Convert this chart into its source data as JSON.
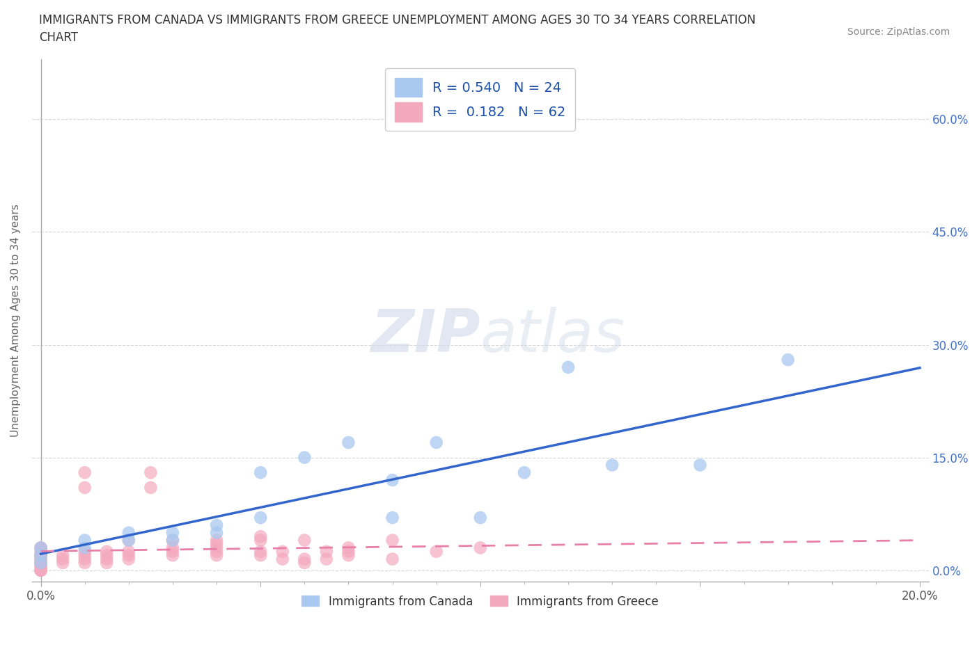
{
  "title_line1": "IMMIGRANTS FROM CANADA VS IMMIGRANTS FROM GREECE UNEMPLOYMENT AMONG AGES 30 TO 34 YEARS CORRELATION",
  "title_line2": "CHART",
  "source": "Source: ZipAtlas.com",
  "ylabel": "Unemployment Among Ages 30 to 34 years",
  "xlim": [
    -0.002,
    0.202
  ],
  "ylim": [
    -0.015,
    0.68
  ],
  "yticks": [
    0.0,
    0.15,
    0.3,
    0.45,
    0.6
  ],
  "ytick_labels": [
    "0.0%",
    "15.0%",
    "30.0%",
    "45.0%",
    "60.0%"
  ],
  "xticks": [
    0.0,
    0.05,
    0.1,
    0.15,
    0.2
  ],
  "xtick_labels": [
    "0.0%",
    "",
    "",
    "",
    "20.0%"
  ],
  "xtick_minor": [
    0.01,
    0.02,
    0.03,
    0.04,
    0.06,
    0.07,
    0.08,
    0.09,
    0.11,
    0.12,
    0.13,
    0.14,
    0.16,
    0.17,
    0.18,
    0.19
  ],
  "canada_R": 0.54,
  "canada_N": 24,
  "greece_R": 0.182,
  "greece_N": 62,
  "canada_color": "#a8c8f0",
  "greece_color": "#f4a8be",
  "canada_line_color": "#3366cc",
  "greece_line_color": "#e87fa8",
  "canada_label": "Immigrants from Canada",
  "greece_label": "Immigrants from Greece",
  "watermark": "ZIPatlas",
  "canada_x": [
    0.0,
    0.0,
    0.0,
    0.01,
    0.01,
    0.02,
    0.02,
    0.03,
    0.03,
    0.04,
    0.04,
    0.05,
    0.05,
    0.06,
    0.07,
    0.08,
    0.08,
    0.09,
    0.1,
    0.11,
    0.12,
    0.13,
    0.15,
    0.17
  ],
  "canada_y": [
    0.01,
    0.02,
    0.03,
    0.03,
    0.04,
    0.04,
    0.05,
    0.04,
    0.05,
    0.05,
    0.06,
    0.13,
    0.07,
    0.15,
    0.17,
    0.07,
    0.12,
    0.17,
    0.07,
    0.13,
    0.27,
    0.14,
    0.14,
    0.28
  ],
  "greece_x": [
    0.0,
    0.0,
    0.0,
    0.0,
    0.0,
    0.0,
    0.0,
    0.0,
    0.0,
    0.0,
    0.0,
    0.0,
    0.0,
    0.0,
    0.0,
    0.0,
    0.005,
    0.005,
    0.005,
    0.01,
    0.01,
    0.01,
    0.01,
    0.01,
    0.01,
    0.015,
    0.015,
    0.015,
    0.015,
    0.02,
    0.02,
    0.02,
    0.02,
    0.025,
    0.025,
    0.03,
    0.03,
    0.03,
    0.03,
    0.04,
    0.04,
    0.04,
    0.04,
    0.04,
    0.05,
    0.05,
    0.05,
    0.05,
    0.055,
    0.055,
    0.06,
    0.06,
    0.06,
    0.065,
    0.065,
    0.07,
    0.07,
    0.07,
    0.08,
    0.08,
    0.09,
    0.1
  ],
  "greece_y": [
    0.0,
    0.0,
    0.0,
    0.005,
    0.005,
    0.01,
    0.01,
    0.01,
    0.015,
    0.015,
    0.02,
    0.02,
    0.02,
    0.025,
    0.03,
    0.03,
    0.01,
    0.015,
    0.02,
    0.01,
    0.015,
    0.02,
    0.025,
    0.11,
    0.13,
    0.01,
    0.015,
    0.02,
    0.025,
    0.015,
    0.02,
    0.025,
    0.04,
    0.11,
    0.13,
    0.02,
    0.025,
    0.03,
    0.04,
    0.02,
    0.025,
    0.03,
    0.035,
    0.04,
    0.02,
    0.025,
    0.04,
    0.045,
    0.015,
    0.025,
    0.01,
    0.015,
    0.04,
    0.015,
    0.025,
    0.02,
    0.025,
    0.03,
    0.015,
    0.04,
    0.025,
    0.03
  ]
}
